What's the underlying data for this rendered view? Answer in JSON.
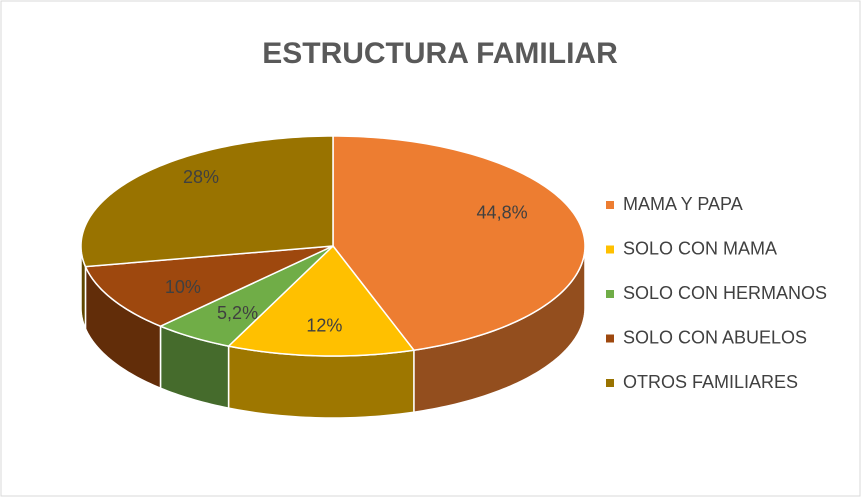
{
  "chart_data": {
    "type": "pie3d",
    "title": "ESTRUCTURA FAMILIAR",
    "categories": [
      "MAMA Y PAPA",
      "SOLO CON MAMA",
      "SOLO CON HERMANOS",
      "SOLO CON ABUELOS",
      "OTROS FAMILIARES"
    ],
    "values": [
      44.8,
      12,
      5.2,
      10,
      28
    ],
    "value_labels": [
      "44,8%",
      "12%",
      "5,2%",
      "10%",
      "28%"
    ],
    "colors": [
      "#ED7D31",
      "#FFC000",
      "#70AD47",
      "#9E480E",
      "#997300"
    ],
    "legend": "right"
  }
}
